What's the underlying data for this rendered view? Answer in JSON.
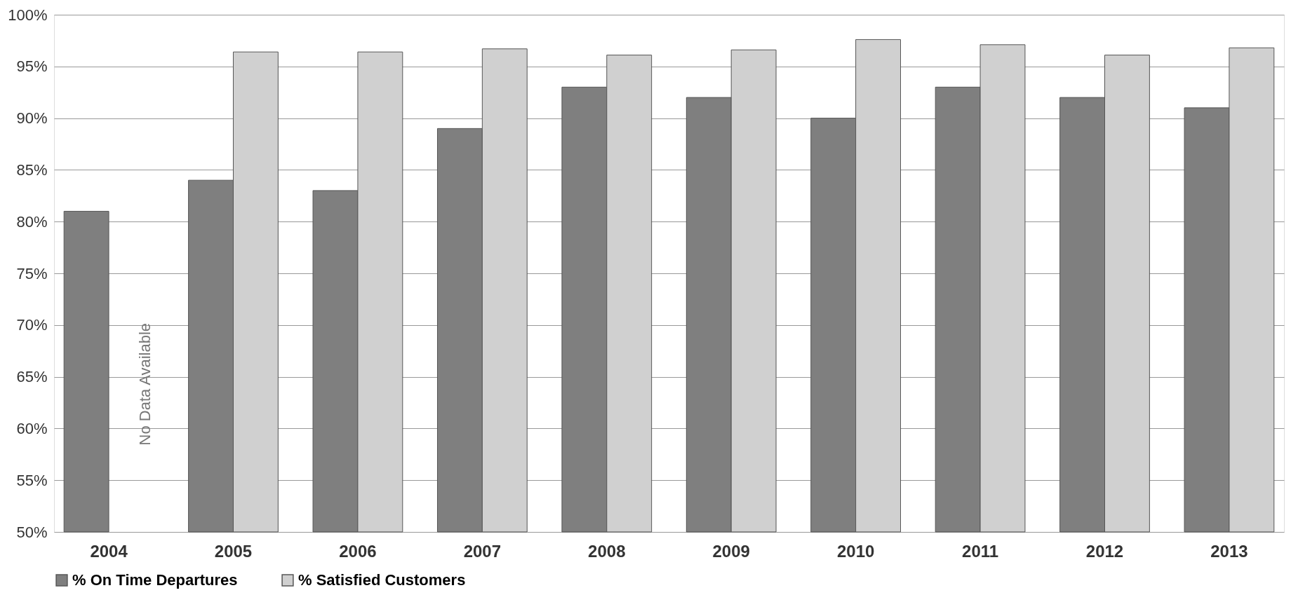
{
  "chart_data": {
    "type": "bar",
    "categories": [
      "2004",
      "2005",
      "2006",
      "2007",
      "2008",
      "2009",
      "2010",
      "2011",
      "2012",
      "2013"
    ],
    "series": [
      {
        "name": "% On Time Departures",
        "color": "#7f7f7f",
        "values": [
          81,
          84,
          83,
          89,
          93,
          92,
          90,
          93,
          92,
          91
        ]
      },
      {
        "name": "% Satisfied Customers",
        "color": "#d0d0d0",
        "values": [
          null,
          96.4,
          96.4,
          96.7,
          96.1,
          96.6,
          97.6,
          97.1,
          96.1,
          96.8
        ]
      }
    ],
    "ylim": [
      50,
      100
    ],
    "yticks": [
      {
        "value": 50,
        "label": "50%"
      },
      {
        "value": 55,
        "label": "55%"
      },
      {
        "value": 60,
        "label": "60%"
      },
      {
        "value": 65,
        "label": "65%"
      },
      {
        "value": 70,
        "label": "70%"
      },
      {
        "value": 75,
        "label": "75%"
      },
      {
        "value": 80,
        "label": "80%"
      },
      {
        "value": 85,
        "label": "85%"
      },
      {
        "value": 90,
        "label": "90%"
      },
      {
        "value": 95,
        "label": "95%"
      },
      {
        "value": 100,
        "label": "100%"
      }
    ],
    "annotations": [
      {
        "text": "No Data Available",
        "x": "2004"
      }
    ],
    "grid": "y",
    "legend": "bottom"
  }
}
